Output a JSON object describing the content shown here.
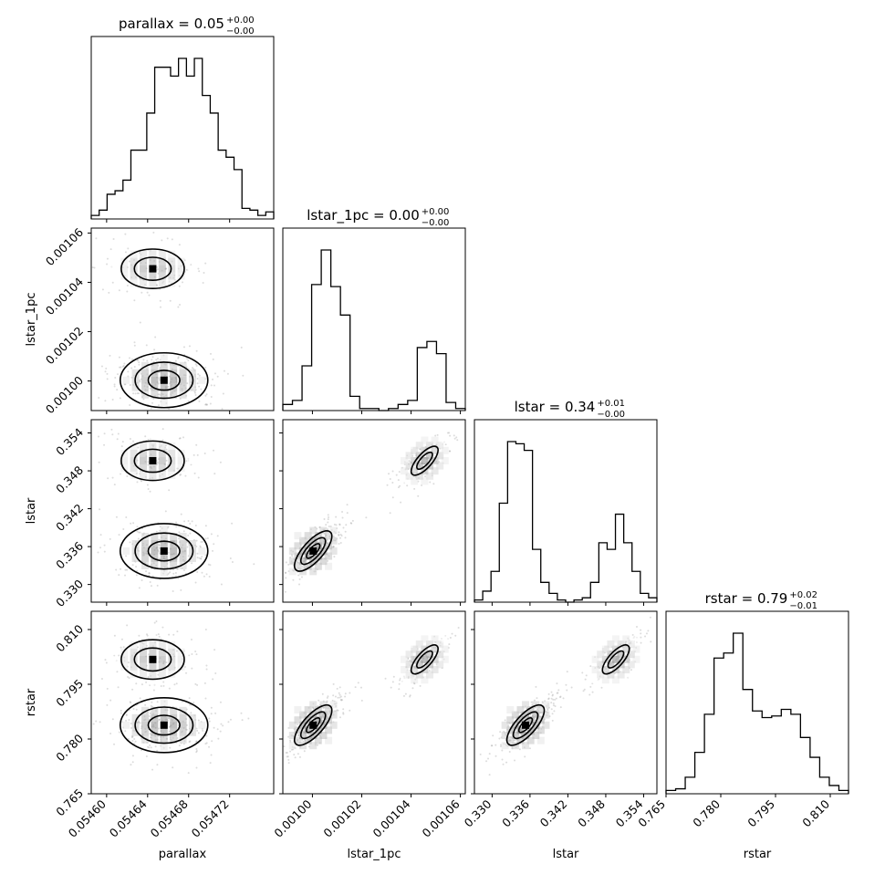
{
  "chart_data": {
    "type": "corner",
    "parameters": [
      {
        "name": "parallax",
        "title": "parallax = 0.05",
        "err_plus": "+0.00",
        "err_minus": "−0.00",
        "axis_label": "parallax",
        "range": [
          0.054585,
          0.054763
        ],
        "ticks": [
          0.0546,
          0.05464,
          0.05468,
          0.05472
        ],
        "tick_labels": [
          "0.05460",
          "0.05464",
          "0.05468",
          "0.05472"
        ],
        "histogram": [
          2,
          5,
          14,
          16,
          22,
          39,
          39,
          60,
          86,
          86,
          81,
          91,
          81,
          91,
          70,
          60,
          39,
          35,
          28,
          6,
          5,
          2,
          4
        ]
      },
      {
        "name": "lstar_1pc",
        "title": "lstar_1pc = 0.00",
        "err_plus": "+0.00",
        "err_minus": "−0.00",
        "axis_label": "lstar_1pc",
        "range": [
          0.000988,
          0.001062
        ],
        "ticks": [
          0.001,
          0.00102,
          0.00104,
          0.00106
        ],
        "tick_labels": [
          "0.00100",
          "0.00102",
          "0.00104",
          "0.00106"
        ],
        "histogram": [
          3,
          5,
          22,
          62,
          79,
          61,
          47,
          7,
          1,
          1,
          0,
          1,
          3,
          5,
          31,
          34,
          28,
          4,
          1
        ]
      },
      {
        "name": "lstar",
        "title": "lstar = 0.34",
        "err_plus": "+0.01",
        "err_minus": "−0.00",
        "axis_label": "lstar",
        "range": [
          0.3272,
          0.3561
        ],
        "ticks": [
          0.33,
          0.336,
          0.342,
          0.348,
          0.354
        ],
        "tick_labels": [
          "0.330",
          "0.336",
          "0.342",
          "0.348",
          "0.354"
        ],
        "histogram": [
          1,
          5,
          14,
          45,
          73,
          72,
          69,
          24,
          9,
          4,
          1,
          0,
          1,
          2,
          9,
          27,
          24,
          40,
          27,
          14,
          4,
          2
        ]
      },
      {
        "name": "rstar",
        "title": "rstar = 0.79",
        "err_plus": "+0.02",
        "err_minus": "−0.01",
        "axis_label": "rstar",
        "range": [
          0.765,
          0.815
        ],
        "ticks": [
          0.765,
          0.78,
          0.795,
          0.81
        ],
        "tick_labels": [
          "0.765",
          "0.780",
          "0.795",
          "0.810"
        ],
        "histogram": [
          2,
          3,
          10,
          25,
          48,
          82,
          85,
          97,
          63,
          50,
          46,
          47,
          51,
          48,
          34,
          22,
          10,
          5,
          2
        ]
      }
    ],
    "modes": [
      {
        "parallax": 0.054656,
        "lstar_1pc": 0.0010003,
        "lstar": 0.3353,
        "rstar": 0.7838
      },
      {
        "parallax": 0.054645,
        "lstar_1pc": 0.0010455,
        "lstar": 0.3496,
        "rstar": 0.8018
      }
    ],
    "grid": false,
    "legend": "none"
  }
}
